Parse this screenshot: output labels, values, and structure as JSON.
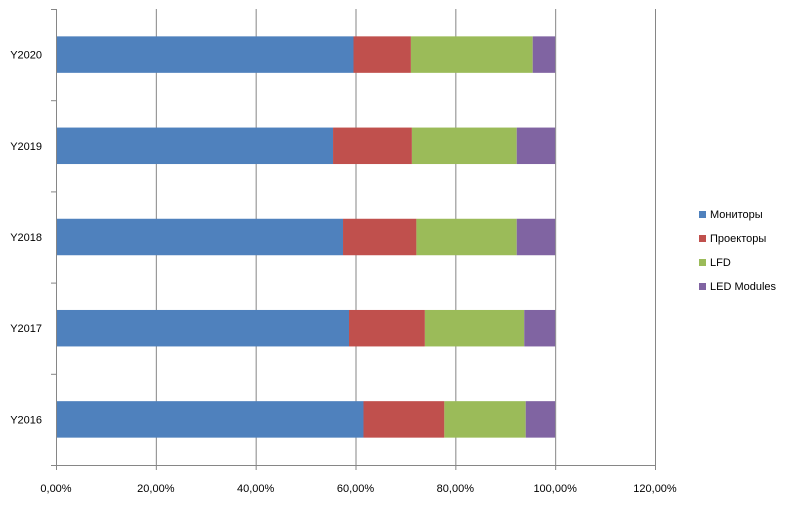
{
  "chart_data": {
    "type": "bar",
    "orientation": "horizontal",
    "stacked": "percent",
    "categories": [
      "Y2020",
      "Y2019",
      "Y2018",
      "Y2017",
      "Y2016"
    ],
    "series": [
      {
        "name": "Мониторы",
        "color": "#4F81BD",
        "values": [
          59.6,
          55.5,
          57.5,
          58.7,
          61.6
        ]
      },
      {
        "name": "Проекторы",
        "color": "#C0504D",
        "values": [
          11.5,
          15.8,
          14.7,
          15.2,
          16.2
        ]
      },
      {
        "name": "LFD",
        "color": "#9BBB59",
        "values": [
          24.4,
          21.0,
          20.1,
          19.9,
          16.3
        ]
      },
      {
        "name": "LED Modules",
        "color": "#8064A2",
        "values": [
          4.5,
          7.7,
          7.7,
          6.2,
          5.9
        ]
      }
    ],
    "xaxis": {
      "ticks": [
        0,
        20,
        40,
        60,
        80,
        100,
        120
      ],
      "tick_labels": [
        "0,00%",
        "20,00%",
        "40,00%",
        "60,00%",
        "80,00%",
        "100,00%",
        "120,00%"
      ],
      "xlim": [
        0,
        120
      ]
    },
    "grid": true,
    "legend": "right"
  }
}
